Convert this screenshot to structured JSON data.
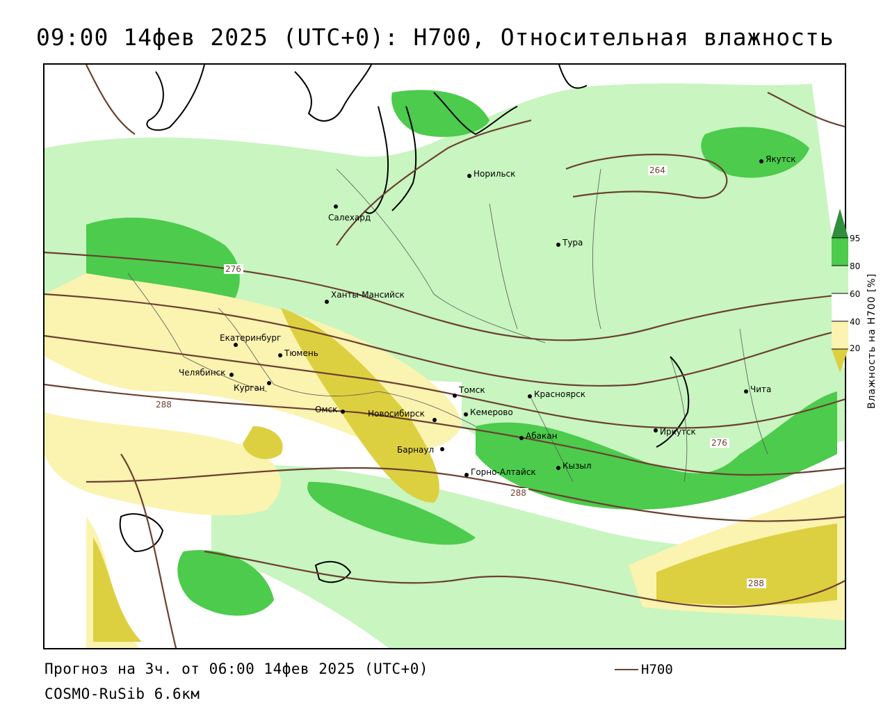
{
  "title": "09:00 14фев 2025 (UTC+0): H700, Относительная влажность",
  "footer": {
    "forecast": "Прогноз на 3ч. от 06:00 14фев 2025 (UTC+0)",
    "model": "COSMO-RuSib 6.6км"
  },
  "legend": {
    "line_label": "H700",
    "line_color": "#6b4030"
  },
  "colorbar": {
    "title": "Влажность на H700 [%]",
    "ticks": [
      "95",
      "80",
      "60",
      "40",
      "20"
    ],
    "colors": {
      "over95": "#2f8f3a",
      "c80_95": "#4ccb4c",
      "c60_80": "#c8f5c0",
      "c40_60": "#ffffff",
      "c20_40": "#fbf3b0",
      "under20": "#ddd040"
    }
  },
  "cities": [
    {
      "name": "Якутск"
    },
    {
      "name": "Норильск"
    },
    {
      "name": "Салехард"
    },
    {
      "name": "Тура"
    },
    {
      "name": "Ханты-Мансийск"
    },
    {
      "name": "Екатеринбург"
    },
    {
      "name": "Тюмень"
    },
    {
      "name": "Челябинск"
    },
    {
      "name": "Курган"
    },
    {
      "name": "Омск"
    },
    {
      "name": "Новосибирск"
    },
    {
      "name": "Томск"
    },
    {
      "name": "Кемерово"
    },
    {
      "name": "Красноярск"
    },
    {
      "name": "Барнаул"
    },
    {
      "name": "Абакан"
    },
    {
      "name": "Горно-Алтайск"
    },
    {
      "name": "Кызыл"
    },
    {
      "name": "Иркутск"
    },
    {
      "name": "Чита"
    }
  ],
  "contour_labels": [
    "264",
    "276",
    "276",
    "288",
    "288",
    "288"
  ]
}
